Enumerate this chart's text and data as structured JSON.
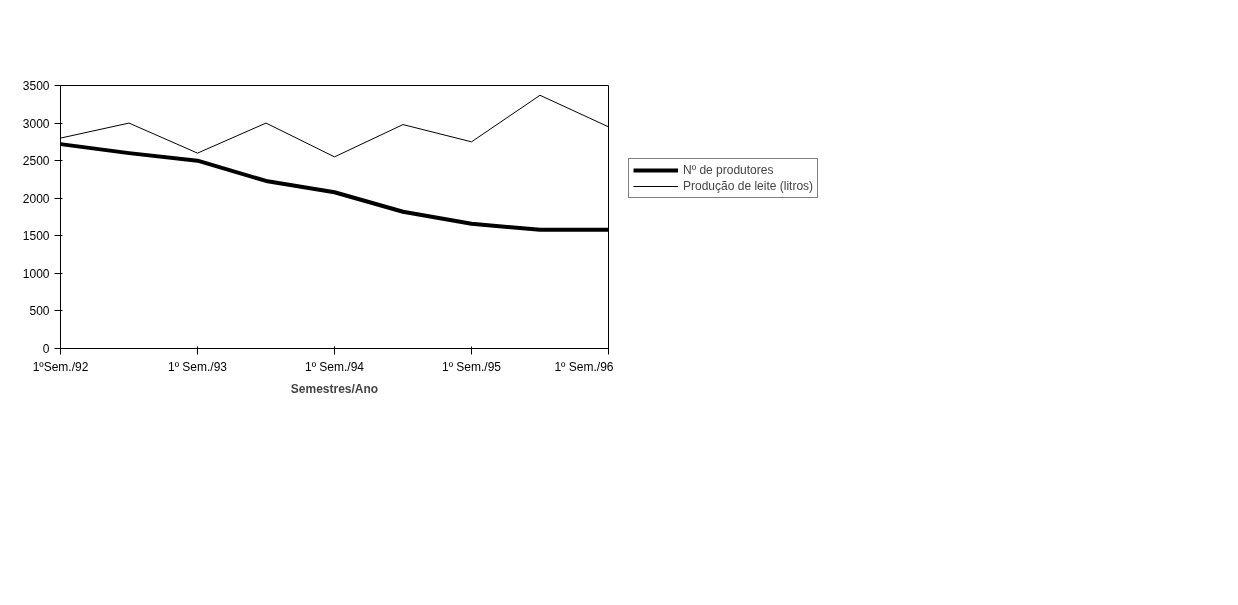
{
  "chart_data": {
    "type": "line",
    "xlabel": "Semestres/Ano",
    "categories": [
      "1ºSem./92",
      null,
      "1º Sem./93",
      null,
      "1º Sem./94",
      null,
      "1º Sem./95",
      null,
      "1º Sem./96"
    ],
    "series": [
      {
        "name": "Nº de produtores",
        "color": "#000000",
        "values": [
          2720,
          2600,
          2500,
          2230,
          2080,
          1820,
          1660,
          1580,
          1580
        ]
      },
      {
        "name": "Produção de leite (litros)",
        "color": "#000000",
        "values": [
          2800,
          3000,
          2600,
          3000,
          2550,
          2980,
          2750,
          3370,
          2950
        ]
      }
    ],
    "ylim": [
      0,
      3500
    ],
    "yticks": [
      0,
      500,
      1000,
      1500,
      2000,
      2500,
      3000,
      3500
    ],
    "grid": false,
    "legend": "right"
  }
}
